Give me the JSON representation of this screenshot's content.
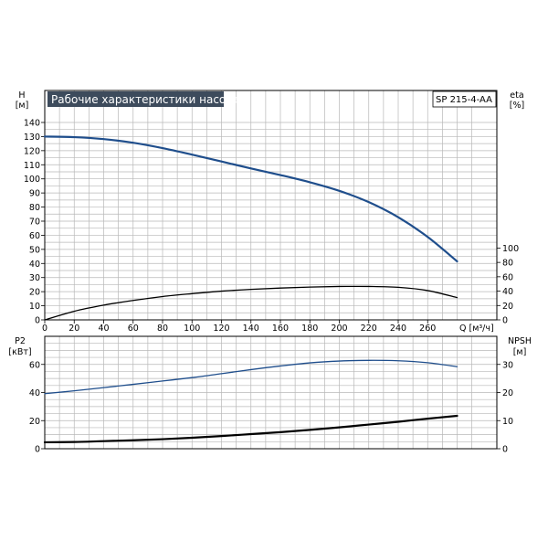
{
  "chart_data": [
    {
      "type": "line",
      "title": "Рабочие характеристики насоса",
      "model": "SP 215-4-AA",
      "xlabel": "Q [м³/ч]",
      "xlim": [
        0,
        280
      ],
      "x_ticks": [
        0,
        20,
        40,
        60,
        80,
        100,
        120,
        140,
        160,
        180,
        200,
        220,
        240,
        260
      ],
      "y_left": {
        "label": "H",
        "unit": "[м]",
        "lim": [
          0,
          140
        ],
        "ticks": [
          0,
          10,
          20,
          30,
          40,
          50,
          60,
          70,
          80,
          90,
          100,
          110,
          120,
          130,
          140
        ]
      },
      "y_right": {
        "label": "eta",
        "unit": "[%]",
        "lim": [
          0,
          100
        ],
        "ticks": [
          0,
          20,
          40,
          60,
          80,
          100
        ]
      },
      "grid": true,
      "series": [
        {
          "axis": "left",
          "color": "#1f4e8c",
          "x": [
            0,
            20,
            40,
            60,
            80,
            100,
            120,
            140,
            160,
            180,
            200,
            220,
            240,
            260,
            280
          ],
          "y": [
            130,
            129.6,
            128.2,
            125.6,
            121.8,
            117.2,
            112.3,
            107.4,
            102.7,
            97.6,
            91.5,
            83.5,
            72.8,
            58.8,
            41.5
          ]
        },
        {
          "axis": "right",
          "color": "#000000",
          "x": [
            0,
            20,
            40,
            60,
            80,
            100,
            120,
            140,
            160,
            180,
            200,
            220,
            240,
            260,
            280
          ],
          "y": [
            0,
            12,
            20.5,
            27,
            32.5,
            36.5,
            40,
            42.5,
            44.3,
            45.7,
            46.5,
            46.5,
            45.3,
            40.8,
            31
          ]
        }
      ]
    },
    {
      "type": "line",
      "xlim": [
        0,
        280
      ],
      "x_ticks": [
        0,
        20,
        40,
        60,
        80,
        100,
        120,
        140,
        160,
        180,
        200,
        220,
        240,
        260
      ],
      "y_left": {
        "label": "P2",
        "unit": "[кВт]",
        "lim": [
          0,
          80
        ],
        "ticks": [
          0,
          20,
          40,
          60
        ]
      },
      "y_right": {
        "label": "NPSH",
        "unit": "[м]",
        "lim": [
          0,
          40
        ],
        "ticks": [
          0,
          10,
          20,
          30
        ]
      },
      "grid": true,
      "series": [
        {
          "axis": "left",
          "color": "#1f4e8c",
          "x": [
            0,
            20,
            40,
            60,
            80,
            100,
            120,
            140,
            160,
            180,
            200,
            220,
            240,
            260,
            280
          ],
          "y": [
            39.2,
            41.2,
            43.5,
            45.8,
            48.2,
            50.6,
            53.4,
            56.3,
            58.9,
            61.1,
            62.4,
            62.9,
            62.6,
            61.2,
            58.4
          ]
        },
        {
          "axis": "right",
          "color": "#000000",
          "x": [
            0,
            20,
            40,
            60,
            80,
            100,
            120,
            140,
            160,
            180,
            200,
            220,
            240,
            260,
            280
          ],
          "y": [
            2.3,
            2.4,
            2.7,
            3.0,
            3.4,
            3.9,
            4.5,
            5.2,
            5.9,
            6.7,
            7.6,
            8.6,
            9.6,
            10.7,
            11.7
          ]
        }
      ]
    }
  ]
}
